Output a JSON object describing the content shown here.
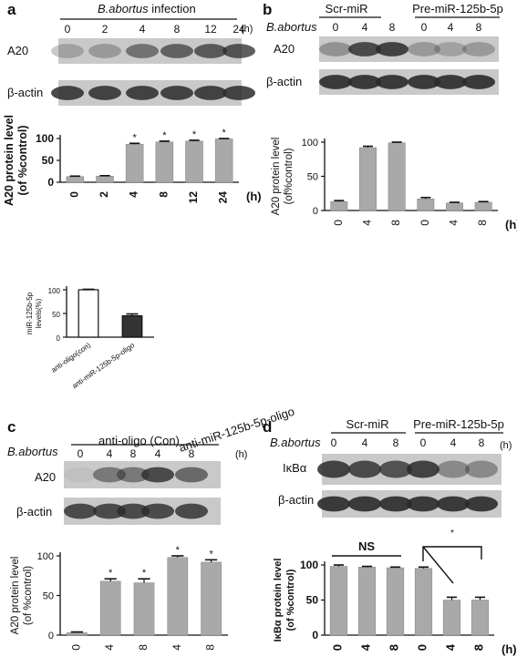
{
  "panels": {
    "a": {
      "letter": "a",
      "header": {
        "italic": "B.abortus",
        "rest": " infection"
      },
      "times": [
        "0",
        "2",
        "4",
        "8",
        "12",
        "24"
      ],
      "unit": "(h)",
      "rows": [
        "A20",
        "β-actin"
      ]
    },
    "b": {
      "letter": "b",
      "groups": [
        "Scr-miR",
        "Pre-miR-125b-5p"
      ],
      "treat": "B.abortus",
      "times": [
        "0",
        "4",
        "8",
        "0",
        "4",
        "8"
      ],
      "rows": [
        "A20",
        "β-actin"
      ]
    },
    "c": {
      "letter": "c",
      "groups": [
        "anti-oligo (Con)",
        "anti-miR-125b-5p-oligo"
      ],
      "treat": "B.abortus",
      "times": [
        "0",
        "4",
        "8",
        "4",
        "8"
      ],
      "unit": "(h)",
      "rows": [
        "A20",
        "β-actin"
      ]
    },
    "d": {
      "letter": "d",
      "groups": [
        "Scr-miR",
        "Pre-miR-125b-5p"
      ],
      "treat": "B.abortus",
      "times": [
        "0",
        "4",
        "8",
        "0",
        "4",
        "8"
      ],
      "unit": "(h)",
      "rows": [
        "IκBα",
        "β-actin"
      ]
    }
  },
  "chart_data": [
    {
      "id": "a",
      "type": "bar",
      "categories": [
        "0",
        "2",
        "4",
        "8",
        "12",
        "24"
      ],
      "values": [
        13,
        14,
        87,
        92,
        94,
        99
      ],
      "errors": [
        1,
        1,
        2,
        2,
        2,
        1
      ],
      "stars": [
        "",
        "",
        "*",
        "*",
        "*",
        "*"
      ],
      "xunit": "(h)",
      "ylabel": "A20 protein level\n(of %control)",
      "ylim": [
        0,
        100
      ],
      "yticks": [
        0,
        50,
        100
      ]
    },
    {
      "id": "b",
      "type": "bar",
      "categories": [
        "0",
        "4",
        "8",
        "0",
        "4",
        "8"
      ],
      "values": [
        13,
        92,
        99,
        17,
        11,
        12
      ],
      "errors": [
        1.5,
        2,
        1,
        2,
        1,
        1
      ],
      "stars": [
        "",
        "",
        "",
        "",
        "",
        ""
      ],
      "xunit": "(h)",
      "ylabel": "A20 protein level\n(of%control)",
      "ylim": [
        0,
        100
      ],
      "yticks": [
        0,
        50,
        100
      ]
    },
    {
      "id": "e",
      "type": "bar",
      "categories": [
        "anti-oligo(con)",
        "anti-miR-125b-5p-oligo"
      ],
      "values": [
        100,
        45
      ],
      "errors": [
        1,
        4
      ],
      "fills": [
        "#ffffff",
        "#333333"
      ],
      "ylabel": "miR-125b-5p\nlevels(%)",
      "ylim": [
        0,
        100
      ],
      "yticks": [
        0,
        50,
        100
      ]
    },
    {
      "id": "c",
      "type": "bar",
      "categories": [
        "0",
        "4",
        "8",
        "4",
        "8"
      ],
      "values": [
        3,
        68,
        66,
        98,
        92
      ],
      "errors": [
        1,
        3,
        5,
        2,
        3
      ],
      "stars": [
        "",
        "*",
        "*",
        "*",
        "*"
      ],
      "ylabel": "A20 protein level\n(of %control)",
      "ylim": [
        0,
        100
      ],
      "yticks": [
        0,
        50,
        100
      ]
    },
    {
      "id": "d",
      "type": "bar",
      "categories": [
        "0",
        "4",
        "8",
        "0",
        "4",
        "8"
      ],
      "values": [
        98,
        97,
        96,
        95,
        50,
        50
      ],
      "errors": [
        2,
        1,
        1,
        2,
        4,
        4
      ],
      "stars": [
        "",
        "",
        "",
        "",
        "",
        ""
      ],
      "xunit": "(h)",
      "ylabel": "IκBα protein level\n(of %control)",
      "ylim": [
        0,
        100
      ],
      "yticks": [
        0,
        50,
        100
      ],
      "annotations": {
        "ns": "NS",
        "sig": "*"
      }
    }
  ],
  "colors": {
    "bar": "#a9a9a9",
    "bar_stroke": "#8a8a8a",
    "blot_bg": "#c9c9c9",
    "band": "#2a2a2a"
  }
}
